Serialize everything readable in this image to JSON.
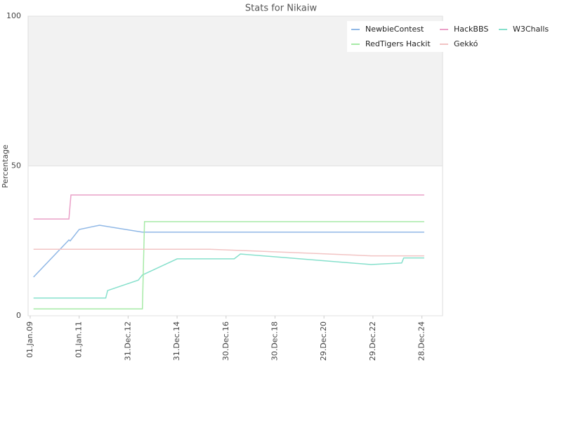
{
  "chart_data": {
    "type": "line",
    "title": "Stats for Nikaiw",
    "y_label": "Percentage",
    "xlim": [
      "2008-12-01",
      "2025-11-01"
    ],
    "ylim": [
      0,
      100
    ],
    "yticks": [
      0,
      50,
      100
    ],
    "grid": true,
    "xticks": [
      {
        "value": "2009-01-01",
        "label": "01.Jan.09"
      },
      {
        "value": "2011-01-01",
        "label": "01.Jan.11"
      },
      {
        "value": "2012-12-31",
        "label": "31.Dec.12"
      },
      {
        "value": "2014-12-31",
        "label": "31.Dec.14"
      },
      {
        "value": "2016-12-30",
        "label": "30.Dec.16"
      },
      {
        "value": "2018-12-30",
        "label": "30.Dec.18"
      },
      {
        "value": "2020-12-29",
        "label": "29.Dec.20"
      },
      {
        "value": "2022-12-29",
        "label": "29.Dec.22"
      },
      {
        "value": "2024-12-28",
        "label": "28.Dec.24"
      }
    ],
    "series": [
      {
        "name": "NewbieContest",
        "color": "#90b8e6",
        "x": [
          "2009-02-20",
          "2010-08-01",
          "2010-08-20",
          "2011-01-01",
          "2011-11-01",
          "2013-08-01",
          "2025-02-01"
        ],
        "values": [
          12.9,
          25.3,
          25.0,
          28.8,
          30.2,
          27.9,
          27.9
        ]
      },
      {
        "name": "HackBBS",
        "color": "#eaa0c8",
        "x": [
          "2009-02-20",
          "2010-08-01",
          "2010-09-01",
          "2025-02-01"
        ],
        "values": [
          32.3,
          32.3,
          40.3,
          40.3
        ]
      },
      {
        "name": "W3Challs",
        "color": "#86e0cc",
        "x": [
          "2009-02-20",
          "2012-02-01",
          "2012-03-01",
          "2013-06-01",
          "2013-08-01",
          "2015-01-01",
          "2017-05-01",
          "2017-08-01",
          "2022-12-01",
          "2024-03-01",
          "2024-04-01",
          "2025-02-01"
        ],
        "values": [
          5.9,
          5.9,
          8.4,
          11.9,
          13.6,
          19.0,
          19.0,
          20.6,
          17.1,
          17.6,
          19.3,
          19.3
        ]
      },
      {
        "name": "RedTigers Hackit",
        "color": "#a6eaa6",
        "x": [
          "2009-02-20",
          "2013-08-01",
          "2013-09-01",
          "2025-02-01"
        ],
        "values": [
          2.3,
          2.3,
          31.4,
          31.4
        ]
      },
      {
        "name": "Gekkó",
        "color": "#f2c4c4",
        "x": [
          "2009-02-20",
          "2016-05-01",
          "2020-09-01",
          "2022-12-01",
          "2025-02-01"
        ],
        "values": [
          22.2,
          22.2,
          20.8,
          20.0,
          20.0
        ]
      }
    ]
  }
}
